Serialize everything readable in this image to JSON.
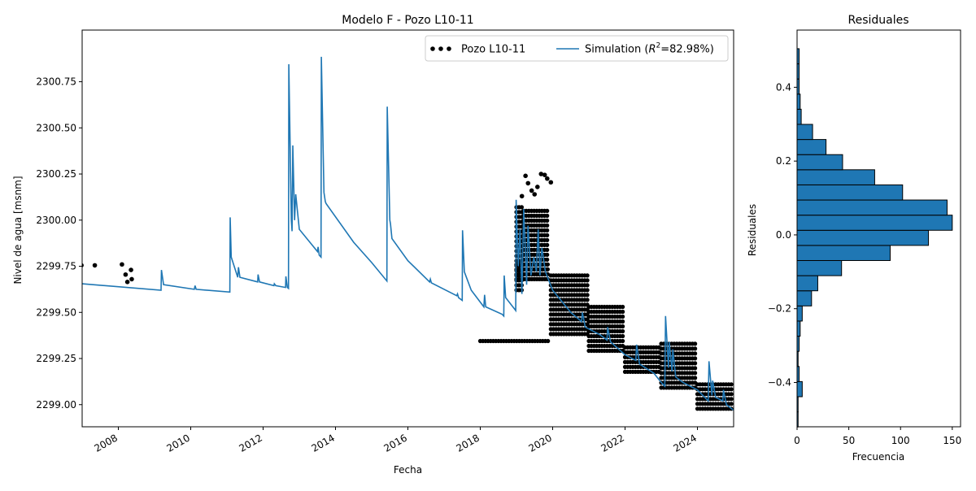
{
  "chart_data": [
    {
      "type": "line",
      "title": "Modelo F - Pozo L10-11",
      "xlabel": "Fecha",
      "ylabel": "Nivel de agua [msnm]",
      "xlim": [
        "2007-01-01",
        "2025-01-01"
      ],
      "ylim": [
        2298.88,
        2301.03
      ],
      "x_ticks": [
        "2008",
        "2010",
        "2012",
        "2014",
        "2016",
        "2018",
        "2020",
        "2022",
        "2024"
      ],
      "y_ticks": [
        "2299.00",
        "2299.25",
        "2299.50",
        "2299.75",
        "2300.00",
        "2300.25",
        "2300.50",
        "2300.75"
      ],
      "grid": false,
      "legend": {
        "placement": "top-right",
        "observed_label": "Pozo L10-11",
        "simulation_label_prefix": "Simulation (",
        "simulation_label_r2": "R",
        "simulation_label_r2_sup": "2",
        "simulation_label_suffix": "=82.98%)"
      },
      "colors": {
        "observed": "#000000",
        "simulation": "#1f77b4"
      },
      "series": [
        {
          "name": "Pozo L10-11",
          "style": "scatter",
          "points": [
            [
              2006.98,
              2299.755
            ],
            [
              2007.35,
              2299.755
            ],
            [
              2008.1,
              2299.76
            ],
            [
              2008.2,
              2299.705
            ],
            [
              2008.35,
              2299.73
            ],
            [
              2008.25,
              2299.665
            ],
            [
              2008.37,
              2299.68
            ],
            [
              2019.15,
              2300.13
            ],
            [
              2019.25,
              2300.24
            ],
            [
              2019.32,
              2300.2
            ],
            [
              2019.42,
              2300.16
            ],
            [
              2019.5,
              2300.14
            ],
            [
              2019.58,
              2300.18
            ],
            [
              2019.68,
              2300.25
            ],
            [
              2019.78,
              2300.245
            ],
            [
              2019.85,
              2300.225
            ],
            [
              2019.95,
              2300.205
            ]
          ],
          "bands": [
            {
              "x0": 2018.0,
              "x1": 2019.9,
              "y0": 2299.32,
              "y1": 2299.345
            },
            {
              "x0": 2019.0,
              "x1": 2019.2,
              "y0": 2299.6,
              "y1": 2300.07
            },
            {
              "x0": 2019.2,
              "x1": 2019.9,
              "y0": 2299.68,
              "y1": 2300.05
            },
            {
              "x0": 2019.0,
              "x1": 2019.9,
              "y0": 2299.68,
              "y1": 2299.76
            },
            {
              "x0": 2019.95,
              "x1": 2021.0,
              "y0": 2299.38,
              "y1": 2299.7
            },
            {
              "x0": 2021.0,
              "x1": 2022.0,
              "y0": 2299.27,
              "y1": 2299.53
            },
            {
              "x0": 2022.0,
              "x1": 2023.0,
              "y0": 2299.17,
              "y1": 2299.31
            },
            {
              "x0": 2023.0,
              "x1": 2024.0,
              "y0": 2299.09,
              "y1": 2299.33
            },
            {
              "x0": 2024.0,
              "x1": 2025.0,
              "y0": 2298.96,
              "y1": 2299.11
            }
          ]
        },
        {
          "name": "Simulation (R²=82.98%)",
          "style": "line",
          "points": [
            [
              2007.0,
              2299.655
            ],
            [
              2009.18,
              2299.62
            ],
            [
              2009.19,
              2299.73
            ],
            [
              2009.25,
              2299.65
            ],
            [
              2010.1,
              2299.625
            ],
            [
              2010.12,
              2299.645
            ],
            [
              2010.15,
              2299.625
            ],
            [
              2011.08,
              2299.61
            ],
            [
              2011.09,
              2300.015
            ],
            [
              2011.12,
              2299.8
            ],
            [
              2011.3,
              2299.69
            ],
            [
              2011.32,
              2299.745
            ],
            [
              2011.36,
              2299.69
            ],
            [
              2011.85,
              2299.665
            ],
            [
              2011.86,
              2299.705
            ],
            [
              2011.9,
              2299.665
            ],
            [
              2012.3,
              2299.645
            ],
            [
              2012.31,
              2299.655
            ],
            [
              2012.35,
              2299.645
            ],
            [
              2012.62,
              2299.635
            ],
            [
              2012.63,
              2299.695
            ],
            [
              2012.67,
              2299.635
            ],
            [
              2012.7,
              2299.63
            ],
            [
              2012.71,
              2300.845
            ],
            [
              2012.78,
              2300.0
            ],
            [
              2012.8,
              2299.94
            ],
            [
              2012.82,
              2300.405
            ],
            [
              2012.87,
              2300.0
            ],
            [
              2012.9,
              2300.14
            ],
            [
              2013.0,
              2299.95
            ],
            [
              2013.5,
              2299.83
            ],
            [
              2013.52,
              2299.855
            ],
            [
              2013.55,
              2299.81
            ],
            [
              2013.6,
              2299.8
            ],
            [
              2013.61,
              2300.885
            ],
            [
              2013.68,
              2300.15
            ],
            [
              2013.72,
              2300.1
            ],
            [
              2013.74,
              2300.09
            ],
            [
              2014.5,
              2299.88
            ],
            [
              2015.0,
              2299.77
            ],
            [
              2015.42,
              2299.67
            ],
            [
              2015.43,
              2300.615
            ],
            [
              2015.5,
              2300.0
            ],
            [
              2015.52,
              2299.98
            ],
            [
              2015.56,
              2299.9
            ],
            [
              2016.0,
              2299.78
            ],
            [
              2016.6,
              2299.665
            ],
            [
              2016.62,
              2299.68
            ],
            [
              2016.65,
              2299.66
            ],
            [
              2017.35,
              2299.59
            ],
            [
              2017.37,
              2299.6
            ],
            [
              2017.4,
              2299.58
            ],
            [
              2017.5,
              2299.565
            ],
            [
              2017.51,
              2299.945
            ],
            [
              2017.56,
              2299.72
            ],
            [
              2017.75,
              2299.62
            ],
            [
              2018.1,
              2299.53
            ],
            [
              2018.12,
              2299.595
            ],
            [
              2018.15,
              2299.53
            ],
            [
              2018.6,
              2299.49
            ],
            [
              2018.65,
              2299.48
            ],
            [
              2018.66,
              2299.7
            ],
            [
              2018.7,
              2299.58
            ],
            [
              2018.9,
              2299.53
            ],
            [
              2018.98,
              2299.51
            ],
            [
              2018.99,
              2300.11
            ],
            [
              2019.05,
              2299.75
            ],
            [
              2019.1,
              2299.95
            ],
            [
              2019.15,
              2299.6
            ],
            [
              2019.2,
              2300.06
            ],
            [
              2019.28,
              2299.65
            ],
            [
              2019.32,
              2299.97
            ],
            [
              2019.4,
              2299.7
            ],
            [
              2019.48,
              2299.8
            ],
            [
              2019.55,
              2299.72
            ],
            [
              2019.6,
              2299.95
            ],
            [
              2019.65,
              2299.7
            ],
            [
              2019.7,
              2299.85
            ],
            [
              2019.8,
              2299.72
            ],
            [
              2020.0,
              2299.62
            ],
            [
              2020.5,
              2299.5
            ],
            [
              2020.8,
              2299.45
            ],
            [
              2020.82,
              2299.5
            ],
            [
              2020.9,
              2299.42
            ],
            [
              2021.3,
              2299.38
            ],
            [
              2021.5,
              2299.35
            ],
            [
              2021.52,
              2299.42
            ],
            [
              2021.6,
              2299.34
            ],
            [
              2022.0,
              2299.27
            ],
            [
              2022.3,
              2299.24
            ],
            [
              2022.32,
              2299.325
            ],
            [
              2022.4,
              2299.22
            ],
            [
              2022.8,
              2299.17
            ],
            [
              2023.0,
              2299.12
            ],
            [
              2023.1,
              2299.1
            ],
            [
              2023.12,
              2299.48
            ],
            [
              2023.2,
              2299.2
            ],
            [
              2023.22,
              2299.34
            ],
            [
              2023.3,
              2299.18
            ],
            [
              2023.32,
              2299.3
            ],
            [
              2023.4,
              2299.15
            ],
            [
              2023.6,
              2299.12
            ],
            [
              2023.8,
              2299.1
            ],
            [
              2024.0,
              2299.08
            ],
            [
              2024.3,
              2299.02
            ],
            [
              2024.32,
              2299.235
            ],
            [
              2024.4,
              2299.05
            ],
            [
              2024.42,
              2299.13
            ],
            [
              2024.5,
              2299.04
            ],
            [
              2024.7,
              2299.02
            ],
            [
              2024.72,
              2299.08
            ],
            [
              2024.8,
              2299.0
            ],
            [
              2025.0,
              2298.97
            ]
          ]
        }
      ]
    },
    {
      "type": "bar",
      "orientation": "horizontal",
      "title": "Residuales",
      "xlabel": "Frecuencia",
      "ylabel": "Residuales",
      "xlim": [
        0,
        158
      ],
      "ylim": [
        -0.52,
        0.555
      ],
      "x_ticks": [
        "0",
        "50",
        "100",
        "150"
      ],
      "y_ticks": [
        "−0.4",
        "−0.2",
        "0.0",
        "0.2",
        "0.4"
      ],
      "bar_color": "#1f77b4",
      "bin_width": 0.041,
      "bins": [
        {
          "y": -0.5,
          "count": 1
        },
        {
          "y": -0.459,
          "count": 1
        },
        {
          "y": -0.418,
          "count": 5
        },
        {
          "y": -0.377,
          "count": 2
        },
        {
          "y": -0.336,
          "count": 1
        },
        {
          "y": -0.295,
          "count": 2
        },
        {
          "y": -0.254,
          "count": 3
        },
        {
          "y": -0.213,
          "count": 5
        },
        {
          "y": -0.172,
          "count": 14
        },
        {
          "y": -0.131,
          "count": 20
        },
        {
          "y": -0.09,
          "count": 43
        },
        {
          "y": -0.049,
          "count": 90
        },
        {
          "y": -0.008,
          "count": 127
        },
        {
          "y": 0.033,
          "count": 150
        },
        {
          "y": 0.074,
          "count": 145
        },
        {
          "y": 0.115,
          "count": 102
        },
        {
          "y": 0.156,
          "count": 75
        },
        {
          "y": 0.197,
          "count": 44
        },
        {
          "y": 0.238,
          "count": 28
        },
        {
          "y": 0.279,
          "count": 15
        },
        {
          "y": 0.32,
          "count": 4
        },
        {
          "y": 0.361,
          "count": 3
        },
        {
          "y": 0.402,
          "count": 2
        },
        {
          "y": 0.443,
          "count": 2
        },
        {
          "y": 0.484,
          "count": 2
        }
      ]
    }
  ]
}
